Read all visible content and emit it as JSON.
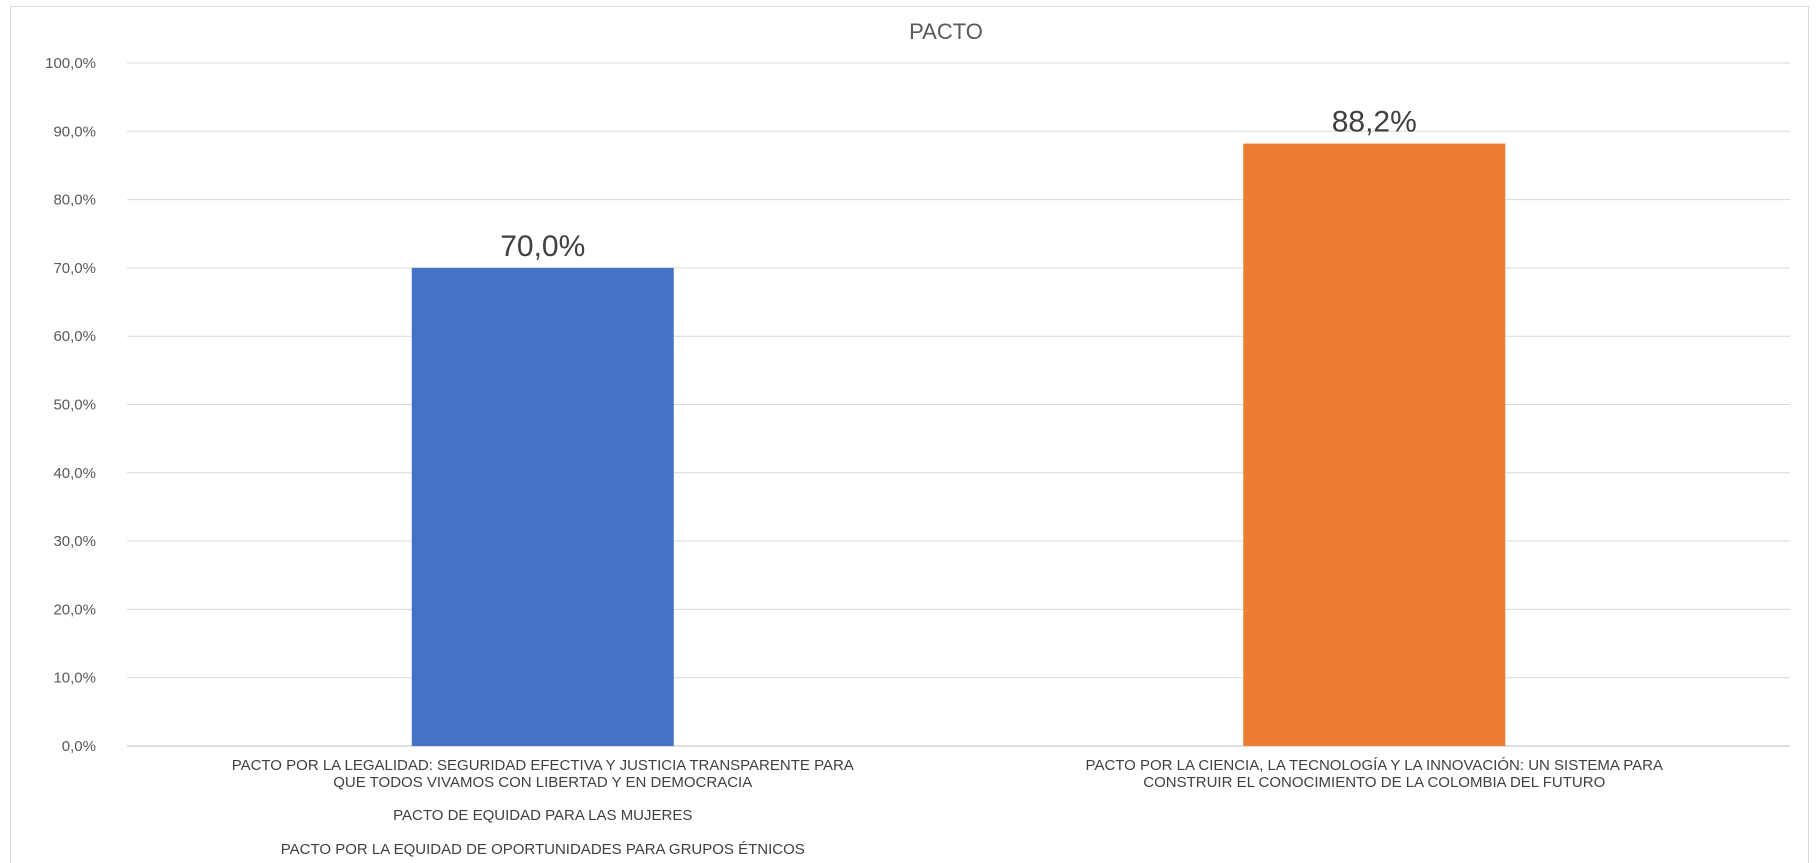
{
  "chart_data": {
    "type": "bar",
    "title": "PACTO",
    "xlabel": "",
    "ylabel": "",
    "ylim": [
      0,
      100
    ],
    "y_ticks": [
      "0,0%",
      "10,0%",
      "20,0%",
      "30,0%",
      "40,0%",
      "50,0%",
      "60,0%",
      "70,0%",
      "80,0%",
      "90,0%",
      "100,0%"
    ],
    "grid": true,
    "categories": [
      {
        "lines": [
          "PACTO POR LA LEGALIDAD: SEGURIDAD EFECTIVA Y JUSTICIA TRANSPARENTE PARA",
          "QUE TODOS VIVAMOS CON LIBERTAD Y EN DEMOCRACIA"
        ],
        "extra": [
          "PACTO DE EQUIDAD PARA LAS MUJERES",
          "PACTO POR LA EQUIDAD DE OPORTUNIDADES PARA GRUPOS ÉTNICOS"
        ],
        "value": 70.0,
        "label": "70,0%",
        "color": "#4472C4"
      },
      {
        "lines": [
          "PACTO POR LA CIENCIA, LA TECNOLOGÍA Y LA INNOVACIÓN: UN SISTEMA PARA",
          "CONSTRUIR EL CONOCIMIENTO DE LA COLOMBIA DEL FUTURO"
        ],
        "extra": [],
        "value": 88.2,
        "label": "88,2%",
        "color": "#ED7D31"
      }
    ]
  }
}
